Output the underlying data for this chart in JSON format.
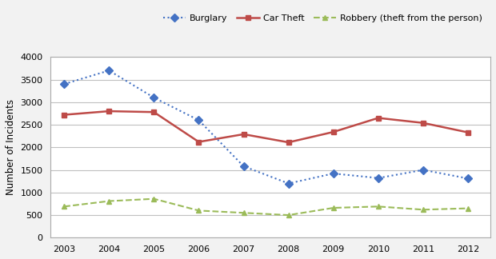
{
  "years": [
    2003,
    2004,
    2005,
    2006,
    2007,
    2008,
    2009,
    2010,
    2011,
    2012
  ],
  "burglary": [
    3400,
    3700,
    3100,
    2600,
    1580,
    1200,
    1420,
    1320,
    1500,
    1310
  ],
  "car_theft": [
    2720,
    2800,
    2780,
    2120,
    2290,
    2110,
    2340,
    2650,
    2540,
    2330
  ],
  "robbery": [
    690,
    810,
    860,
    600,
    550,
    500,
    660,
    690,
    620,
    650
  ],
  "burglary_color": "#4472C4",
  "car_theft_color": "#BE4B48",
  "robbery_color": "#9BBB59",
  "ylabel": "Number of Incidents",
  "ylim": [
    0,
    4000
  ],
  "yticks": [
    0,
    500,
    1000,
    1500,
    2000,
    2500,
    3000,
    3500,
    4000
  ],
  "legend_labels": [
    "Burglary",
    "Car Theft",
    "Robbery (theft from the person)"
  ],
  "background_color": "#f2f2f2",
  "plot_bg_color": "#ffffff",
  "grid_color": "#c0c0c0"
}
